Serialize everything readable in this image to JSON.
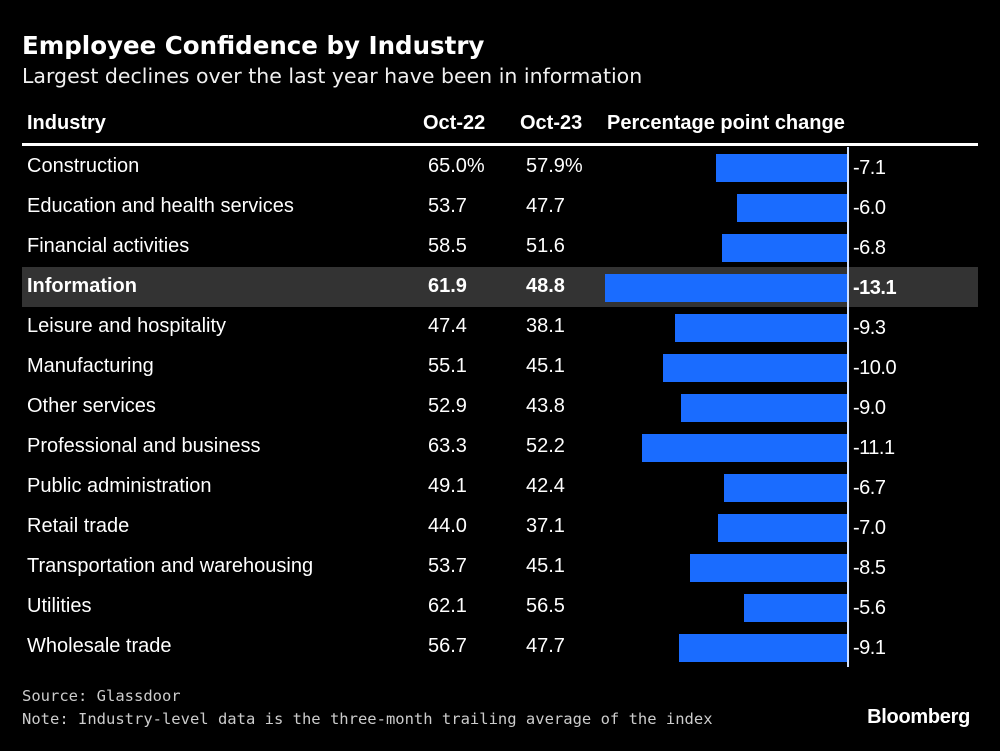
{
  "chart_data": {
    "type": "bar",
    "orientation": "horizontal",
    "title": "Employee Confidence by Industry",
    "subtitle": "Largest declines over the last year have been in information",
    "columns": [
      "Industry",
      "Oct-22",
      "Oct-23",
      "Percentage point change"
    ],
    "highlighted": "Information",
    "bar_color": "#1a6cff",
    "highlight_color": "#333333",
    "rows": [
      {
        "industry": "Construction",
        "oct22": "65.0%",
        "oct23": "57.9%",
        "change": -7.1,
        "change_label": "-7.1"
      },
      {
        "industry": "Education and health services",
        "oct22": "53.7",
        "oct23": "47.7",
        "change": -6.0,
        "change_label": "-6.0"
      },
      {
        "industry": "Financial activities",
        "oct22": "58.5",
        "oct23": "51.6",
        "change": -6.8,
        "change_label": "-6.8"
      },
      {
        "industry": "Information",
        "oct22": "61.9",
        "oct23": "48.8",
        "change": -13.1,
        "change_label": "-13.1"
      },
      {
        "industry": "Leisure and hospitality",
        "oct22": "47.4",
        "oct23": "38.1",
        "change": -9.3,
        "change_label": "-9.3"
      },
      {
        "industry": "Manufacturing",
        "oct22": "55.1",
        "oct23": "45.1",
        "change": -10.0,
        "change_label": "-10.0"
      },
      {
        "industry": "Other services",
        "oct22": "52.9",
        "oct23": "43.8",
        "change": -9.0,
        "change_label": "-9.0"
      },
      {
        "industry": "Professional and business",
        "oct22": "63.3",
        "oct23": "52.2",
        "change": -11.1,
        "change_label": "-11.1"
      },
      {
        "industry": "Public administration",
        "oct22": "49.1",
        "oct23": "42.4",
        "change": -6.7,
        "change_label": "-6.7"
      },
      {
        "industry": "Retail trade",
        "oct22": "44.0",
        "oct23": "37.1",
        "change": -7.0,
        "change_label": "-7.0"
      },
      {
        "industry": "Transportation and warehousing",
        "oct22": "53.7",
        "oct23": "45.1",
        "change": -8.5,
        "change_label": "-8.5"
      },
      {
        "industry": "Utilities",
        "oct22": "62.1",
        "oct23": "56.5",
        "change": -5.6,
        "change_label": "-5.6"
      },
      {
        "industry": "Wholesale trade",
        "oct22": "56.7",
        "oct23": "47.7",
        "change": -9.1,
        "change_label": "-9.1"
      }
    ]
  },
  "footer": {
    "source": "Source: Glassdoor",
    "note": "Note: Industry-level data is the three-month trailing average of the index",
    "logo": "Bloomberg"
  }
}
